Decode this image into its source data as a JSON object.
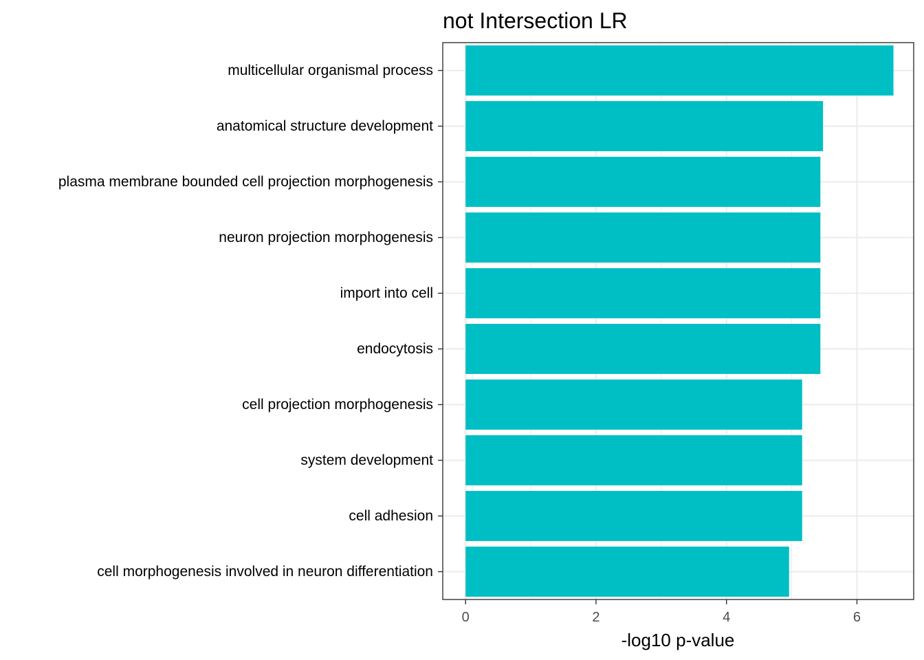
{
  "chart_data": {
    "type": "bar",
    "orientation": "horizontal",
    "title": "not Intersection LR",
    "xlabel": "-log10 p-value",
    "ylabel": "",
    "xlim": [
      -0.35,
      6.87
    ],
    "xticks": [
      "0",
      "2",
      "4",
      "6"
    ],
    "categories": [
      "multicellular organismal process",
      "anatomical structure development",
      "plasma membrane bounded cell projection morphogenesis",
      "neuron projection morphogenesis",
      "import into cell",
      "endocytosis",
      "cell projection morphogenesis",
      "system development",
      "cell adhesion",
      "cell morphogenesis involved in neuron differentiation"
    ],
    "values": [
      6.56,
      5.48,
      5.44,
      5.44,
      5.44,
      5.44,
      5.16,
      5.16,
      5.16,
      4.96
    ],
    "bar_color": "#00BFC4",
    "grid": true
  }
}
